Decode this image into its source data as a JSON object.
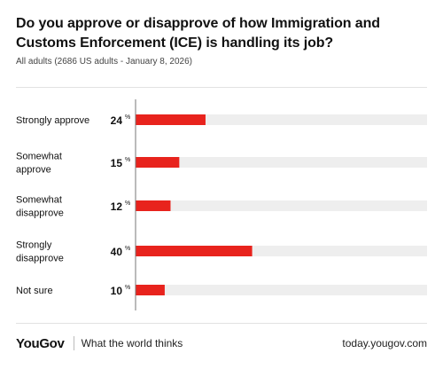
{
  "header": {
    "title": "Do you approve or disapprove of how Immigration and Customs Enforcement (ICE) is handling its job?",
    "subtitle": "All adults (2686 US adults - January 8, 2026)"
  },
  "chart_data": {
    "type": "bar",
    "orientation": "horizontal",
    "categories": [
      "Strongly approve",
      "Somewhat approve",
      "Somewhat disapprove",
      "Strongly disapprove",
      "Not sure"
    ],
    "category_lines": [
      [
        "Strongly approve"
      ],
      [
        "Somewhat",
        "approve"
      ],
      [
        "Somewhat",
        "disapprove"
      ],
      [
        "Strongly",
        "disapprove"
      ],
      [
        "Not sure"
      ]
    ],
    "values": [
      24,
      15,
      12,
      40,
      10
    ],
    "unit": "%",
    "xlim": [
      0,
      100
    ],
    "bar_color": "#e8231d",
    "track_color": "#eeeeee"
  },
  "footer": {
    "logo": "YouGov",
    "tagline": "What the world thinks",
    "site": "today.yougov.com"
  }
}
